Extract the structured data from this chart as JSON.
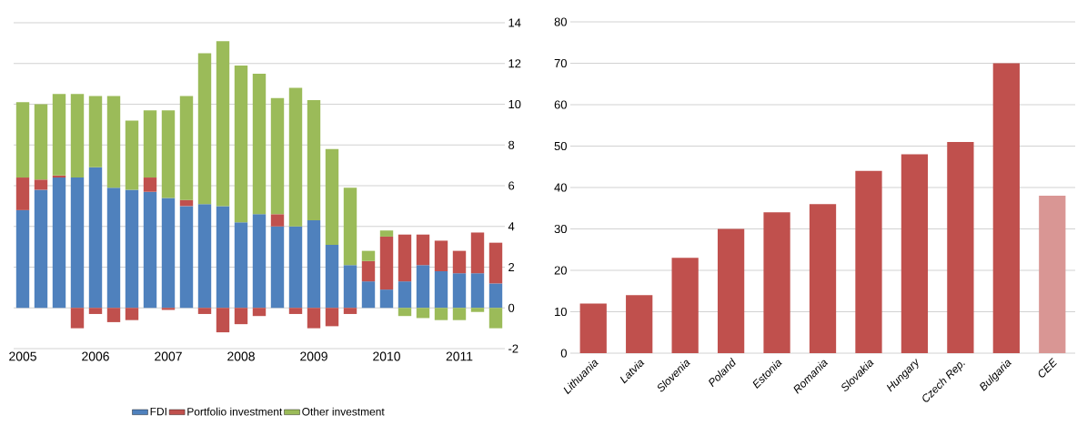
{
  "chart_data": [
    {
      "type": "bar",
      "stacked": true,
      "categories": [
        "2005",
        null,
        null,
        null,
        "2006",
        null,
        null,
        null,
        "2007",
        null,
        null,
        null,
        "2008",
        null,
        null,
        null,
        "2009",
        null,
        null,
        null,
        "2010",
        null,
        null,
        null,
        "2011",
        null,
        null
      ],
      "series": [
        {
          "name": "FDI",
          "color": "#4f81bd",
          "values": [
            4.8,
            5.8,
            6.4,
            6.4,
            6.9,
            5.9,
            5.8,
            5.7,
            5.4,
            5.0,
            5.1,
            5.0,
            4.2,
            4.6,
            4.0,
            4.0,
            4.3,
            3.1,
            2.1,
            1.3,
            0.9,
            1.3,
            2.1,
            1.8,
            1.7,
            1.7,
            1.2
          ]
        },
        {
          "name": "Portfolio investment",
          "color": "#c0504d",
          "values": [
            1.6,
            0.5,
            0.1,
            -1.0,
            -0.3,
            -0.7,
            -0.6,
            0.7,
            -0.1,
            0.3,
            -0.3,
            -1.2,
            -0.8,
            -0.4,
            0.6,
            -0.3,
            -1.0,
            -0.9,
            -0.3,
            1.0,
            2.6,
            2.3,
            1.5,
            1.5,
            1.1,
            2.0,
            2.0
          ]
        },
        {
          "name": "Other investment",
          "color": "#9bbb59",
          "values": [
            3.7,
            3.7,
            4.0,
            4.1,
            3.5,
            4.5,
            3.4,
            3.3,
            4.3,
            5.1,
            7.4,
            8.1,
            7.7,
            6.9,
            5.7,
            6.8,
            5.9,
            4.7,
            3.8,
            0.5,
            0.3,
            -0.4,
            -0.5,
            -0.6,
            -0.6,
            -0.2,
            -1.0
          ]
        }
      ],
      "ylim": [
        -2,
        14
      ],
      "yticks": [
        -2,
        0,
        2,
        4,
        6,
        8,
        10,
        12,
        14
      ],
      "grid": "y",
      "legend": "bottom"
    },
    {
      "type": "bar",
      "categories": [
        "Lithuania",
        "Latvia",
        "Slovenia",
        "Poland",
        "Estonia",
        "Romania",
        "Slovakia",
        "Hungary",
        "Czech Rep.",
        "Bulgaria",
        "CEE"
      ],
      "values": [
        12,
        14,
        23,
        30,
        34,
        36,
        44,
        48,
        51,
        70,
        38
      ],
      "colors": [
        "#c0504d",
        "#c0504d",
        "#c0504d",
        "#c0504d",
        "#c0504d",
        "#c0504d",
        "#c0504d",
        "#c0504d",
        "#c0504d",
        "#c0504d",
        "#d99694"
      ],
      "ylim": [
        0,
        80
      ],
      "yticks": [
        0,
        10,
        20,
        30,
        40,
        50,
        60,
        70,
        80
      ],
      "grid": "y"
    }
  ]
}
